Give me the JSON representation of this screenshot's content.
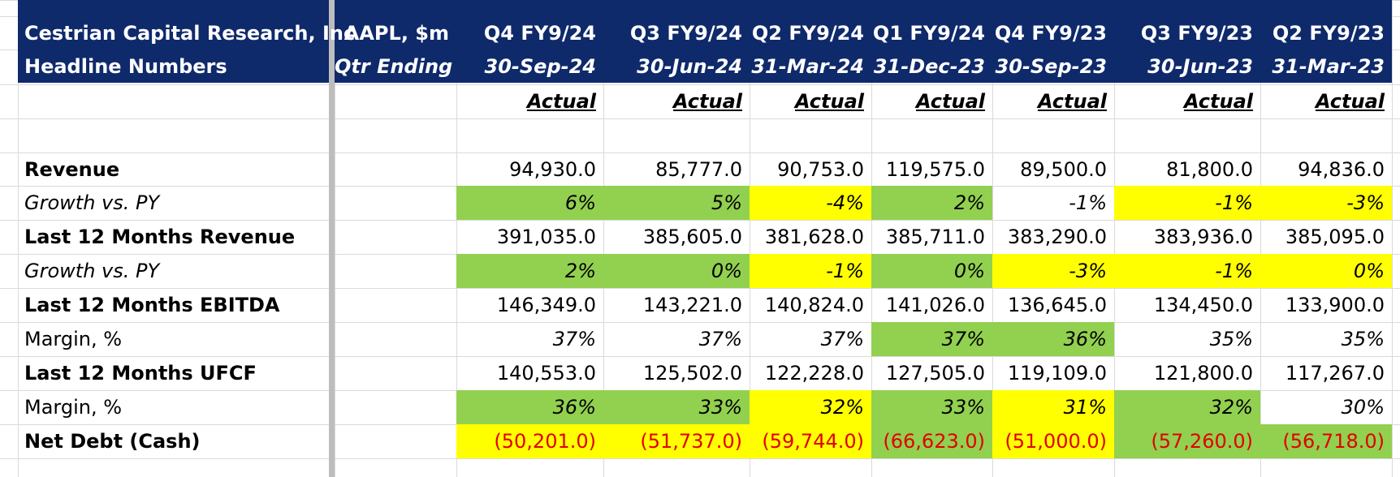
{
  "header": {
    "company_line1": "Cestrian Capital Research, Inc",
    "company_line2": "Headline Numbers",
    "ticker_line1": "AAPL, $m",
    "ticker_line2": "Qtr Ending"
  },
  "columns": [
    {
      "quarter": "Q4 FY9/24",
      "date": "30-Sep-24",
      "status": "Actual"
    },
    {
      "quarter": "Q3 FY9/24",
      "date": "30-Jun-24",
      "status": "Actual"
    },
    {
      "quarter": "Q2 FY9/24",
      "date": "31-Mar-24",
      "status": "Actual"
    },
    {
      "quarter": "Q1 FY9/24",
      "date": "31-Dec-23",
      "status": "Actual"
    },
    {
      "quarter": "Q4 FY9/23",
      "date": "30-Sep-23",
      "status": "Actual"
    },
    {
      "quarter": "Q3 FY9/23",
      "date": "30-Jun-23",
      "status": "Actual"
    },
    {
      "quarter": "Q2 FY9/23",
      "date": "31-Mar-23",
      "status": "Actual"
    }
  ],
  "colors": {
    "header_bg": "#0f2a6b",
    "green": "#92d050",
    "yellow": "#ffff00",
    "negative_text": "#e00000"
  },
  "rows": [
    {
      "label": "Revenue",
      "bold": true,
      "italic": false,
      "values": [
        "94,930.0",
        "85,777.0",
        "90,753.0",
        "119,575.0",
        "89,500.0",
        "81,800.0",
        "94,836.0"
      ],
      "fills": [
        "",
        "",
        "",
        "",
        "",
        "",
        ""
      ],
      "negative": false
    },
    {
      "label": "Growth vs. PY",
      "bold": false,
      "italic": true,
      "values": [
        "6%",
        "5%",
        "-4%",
        "2%",
        "-1%",
        "-1%",
        "-3%"
      ],
      "fills": [
        "green",
        "green",
        "yellow",
        "green",
        "",
        "yellow",
        "yellow"
      ],
      "negative": false
    },
    {
      "label": "Last 12 Months Revenue",
      "bold": true,
      "italic": false,
      "values": [
        "391,035.0",
        "385,605.0",
        "381,628.0",
        "385,711.0",
        "383,290.0",
        "383,936.0",
        "385,095.0"
      ],
      "fills": [
        "",
        "",
        "",
        "",
        "",
        "",
        ""
      ],
      "negative": false
    },
    {
      "label": "Growth vs. PY",
      "bold": false,
      "italic": true,
      "values": [
        "2%",
        "0%",
        "-1%",
        "0%",
        "-3%",
        "-1%",
        "0%"
      ],
      "fills": [
        "green",
        "green",
        "yellow",
        "green",
        "yellow",
        "yellow",
        "yellow"
      ],
      "negative": false
    },
    {
      "label": "Last 12 Months EBITDA",
      "bold": true,
      "italic": false,
      "values": [
        "146,349.0",
        "143,221.0",
        "140,824.0",
        "141,026.0",
        "136,645.0",
        "134,450.0",
        "133,900.0"
      ],
      "fills": [
        "",
        "",
        "",
        "",
        "",
        "",
        ""
      ],
      "negative": false
    },
    {
      "label": "Margin, %",
      "bold": false,
      "italic": false,
      "values_italic": true,
      "values": [
        "37%",
        "37%",
        "37%",
        "37%",
        "36%",
        "35%",
        "35%"
      ],
      "fills": [
        "",
        "",
        "",
        "green",
        "green",
        "",
        ""
      ],
      "negative": false
    },
    {
      "label": "Last 12 Months UFCF",
      "bold": true,
      "italic": false,
      "values": [
        "140,553.0",
        "125,502.0",
        "122,228.0",
        "127,505.0",
        "119,109.0",
        "121,800.0",
        "117,267.0"
      ],
      "fills": [
        "",
        "",
        "",
        "",
        "",
        "",
        ""
      ],
      "negative": false
    },
    {
      "label": "Margin, %",
      "bold": false,
      "italic": false,
      "values_italic": true,
      "values": [
        "36%",
        "33%",
        "32%",
        "33%",
        "31%",
        "32%",
        "30%"
      ],
      "fills": [
        "green",
        "green",
        "yellow",
        "green",
        "yellow",
        "green",
        ""
      ],
      "negative": false
    },
    {
      "label": "Net Debt (Cash)",
      "bold": true,
      "italic": false,
      "values": [
        "(50,201.0)",
        "(51,737.0)",
        "(59,744.0)",
        "(66,623.0)",
        "(51,000.0)",
        "(57,260.0)",
        "(56,718.0)"
      ],
      "fills": [
        "yellow",
        "yellow",
        "yellow",
        "green",
        "yellow",
        "green",
        "green"
      ],
      "negative": true
    }
  ]
}
